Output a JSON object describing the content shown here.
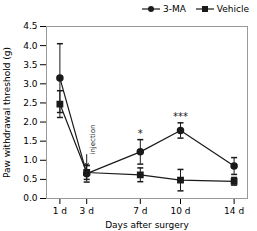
{
  "chart_data": {
    "type": "line",
    "xlabel": "Days after surgery",
    "ylabel": "Paw withdrawal threshold (g)",
    "x": [
      1,
      3,
      7,
      10,
      14
    ],
    "xlim": [
      0,
      15
    ],
    "xticks": [
      {
        "value": 1,
        "label": "1 d"
      },
      {
        "value": 3,
        "label": "3 d"
      },
      {
        "value": 7,
        "label": "7 d"
      },
      {
        "value": 10,
        "label": "10 d"
      },
      {
        "value": 14,
        "label": "14 d"
      }
    ],
    "ylim": [
      0,
      4.5
    ],
    "yticks": [
      {
        "value": 0,
        "label": "0.0"
      },
      0.5,
      {
        "value": 1,
        "label": "1.0"
      },
      1.5,
      {
        "value": 2,
        "label": "2.0"
      },
      2.5,
      {
        "value": 3,
        "label": "3.0"
      },
      3.5,
      {
        "value": 4,
        "label": "4.0"
      },
      4.5
    ],
    "color": "#1a1a1a",
    "legend": "upper right",
    "series": [
      {
        "name": "3-MA",
        "marker": "circle",
        "values": [
          3.15,
          0.65,
          1.22,
          1.78,
          0.85
        ],
        "errors": [
          0.9,
          0.22,
          0.32,
          0.2,
          0.22
        ]
      },
      {
        "name": "Vehicle",
        "marker": "square",
        "values": [
          2.47,
          0.68,
          0.62,
          0.48,
          0.45
        ],
        "errors": [
          0.35,
          0.18,
          0.18,
          0.28,
          0.1
        ]
      }
    ],
    "annotations": [
      {
        "text": "*",
        "x": 7,
        "series": "3-MA"
      },
      {
        "text": "***",
        "x": 10,
        "series": "3-MA"
      },
      {
        "text": "injection",
        "x": 3,
        "y_start": 1.15,
        "y_end": 0.85,
        "arrow": true
      }
    ]
  }
}
